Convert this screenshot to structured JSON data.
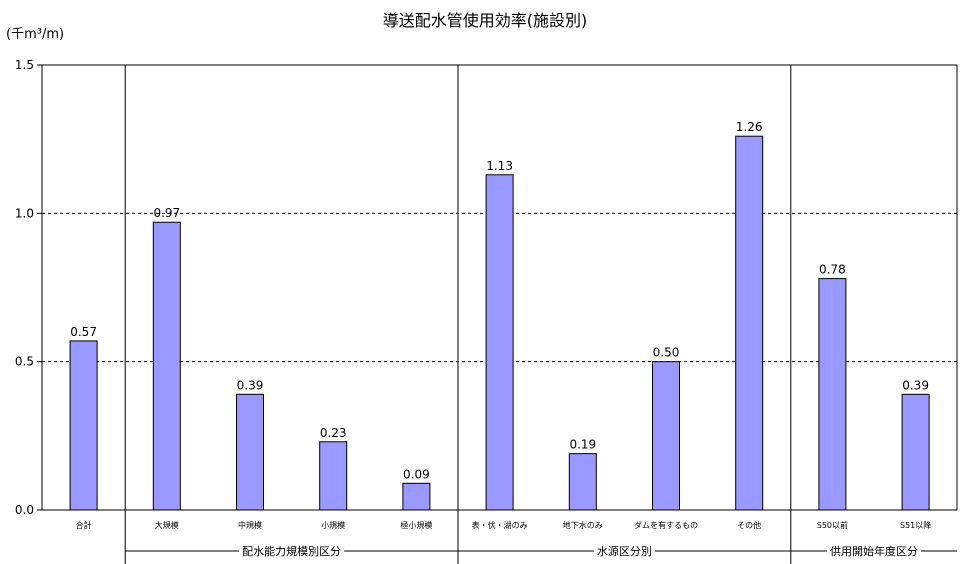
{
  "chart_data": {
    "type": "bar",
    "title": "導送配水管使用効率(施設別)",
    "ylabel": "(千m³/m)",
    "xlabel": "",
    "ylim": [
      0,
      1.5
    ],
    "yticks": [
      "0.0",
      "0.5",
      "1.0",
      "1.5"
    ],
    "grid": "dashed horizontal at 0.5 and 1.0",
    "bar_color": "#9999ff",
    "categories": [
      "合計",
      "大規模",
      "中規模",
      "小規模",
      "極小規模",
      "表・伏・湖のみ",
      "地下水のみ",
      "ダムを有するもの",
      "その他",
      "S50以前",
      "S51以降"
    ],
    "values": [
      0.57,
      0.97,
      0.39,
      0.23,
      0.09,
      1.13,
      0.19,
      0.5,
      1.26,
      0.78,
      0.39
    ],
    "labels": [
      "0.57",
      "0.97",
      "0.39",
      "0.23",
      "0.09",
      "1.13",
      "0.19",
      "0.50",
      "1.26",
      "0.78",
      "0.39"
    ],
    "groups": [
      {
        "name": "配水能力規模別区分",
        "start": 1,
        "end": 4
      },
      {
        "name": "水源区分別",
        "start": 5,
        "end": 8
      },
      {
        "name": "供用開始年度区分",
        "start": 9,
        "end": 10
      }
    ]
  }
}
